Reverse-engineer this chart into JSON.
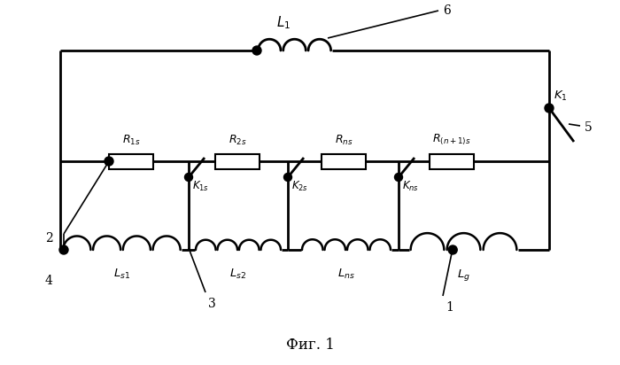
{
  "bg_color": "#ffffff",
  "line_color": "#000000",
  "fig_width": 7.0,
  "fig_height": 4.12,
  "dpi": 100,
  "caption": "Фиг. 1",
  "caption_fontsize": 12
}
